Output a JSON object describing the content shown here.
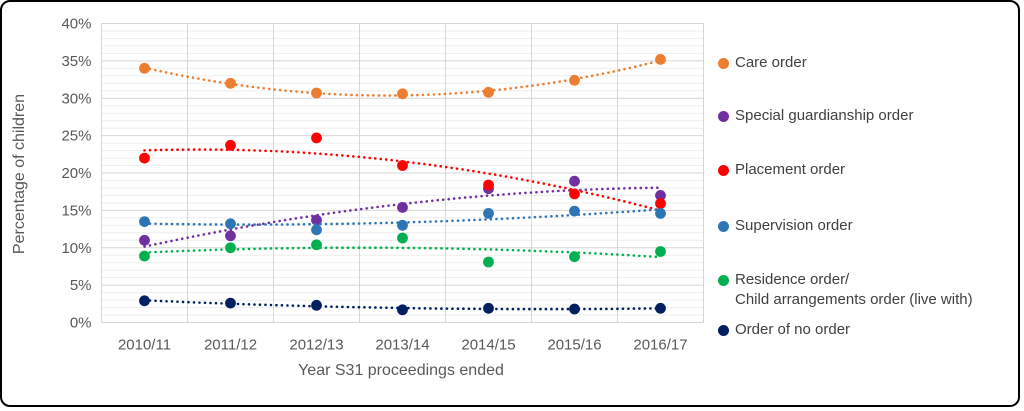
{
  "chart_data": {
    "type": "scatter",
    "title": "",
    "xlabel": "Year S31 proceedings ended",
    "ylabel": "Percentage of children",
    "categories": [
      "2010/11",
      "2011/12",
      "2012/13",
      "2013/14",
      "2014/15",
      "2015/16",
      "2016/17"
    ],
    "y_ticks": [
      "0%",
      "5%",
      "10%",
      "15%",
      "20%",
      "25%",
      "30%",
      "35%",
      "40%"
    ],
    "ylim": [
      0,
      40
    ],
    "grid": {
      "minor_step_pct": 1,
      "major_step_pct": 5,
      "vertical_gridlines": "category-boundaries"
    },
    "legend_position": "right",
    "trendline": "quadratic-dotted",
    "series": [
      {
        "name": "Care order",
        "legend_lines": [
          "Care order"
        ],
        "color": "#ED7D31",
        "values": [
          34.0,
          32.0,
          30.7,
          30.6,
          30.8,
          32.4,
          35.2
        ]
      },
      {
        "name": "Special guardianship order",
        "legend_lines": [
          "Special guardianship order"
        ],
        "color": "#7030A0",
        "values": [
          11.0,
          11.6,
          13.7,
          15.4,
          17.9,
          18.9,
          17.0
        ]
      },
      {
        "name": "Placement order",
        "legend_lines": [
          "Placement order"
        ],
        "color": "#FF0000",
        "values": [
          22.0,
          23.7,
          24.7,
          21.0,
          18.4,
          17.2,
          15.9
        ]
      },
      {
        "name": "Supervision order",
        "legend_lines": [
          "Supervision order"
        ],
        "color": "#2E75B6",
        "values": [
          13.5,
          13.2,
          12.4,
          13.0,
          14.6,
          14.9,
          14.6
        ]
      },
      {
        "name": "Residence order/ Child arrangements order (live with)",
        "legend_lines": [
          "Residence order/",
          "Child arrangements order (live with)"
        ],
        "color": "#00B050",
        "values": [
          8.9,
          10.0,
          10.4,
          11.3,
          8.1,
          8.8,
          9.5
        ]
      },
      {
        "name": "Order of no order",
        "legend_lines": [
          "Order of no order"
        ],
        "color": "#002060",
        "values": [
          2.9,
          2.6,
          2.3,
          1.7,
          1.9,
          1.8,
          1.9
        ]
      }
    ],
    "colors": {
      "axis_text": "#595959",
      "legend_text": "#404040",
      "gridline_minor": "#EDEDED",
      "gridline_major": "#D6D6D6",
      "plot_border": "#D6D6D6"
    }
  }
}
